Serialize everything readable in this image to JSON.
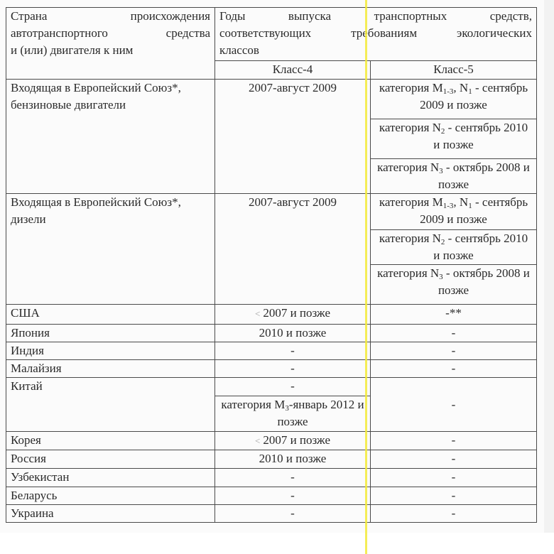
{
  "header": {
    "col1_line1_a": "Страна",
    "col1_line1_b": "происхождения",
    "col1_line2": "автотранспортного средства",
    "col1_line3": "и (или) двигателя к ним",
    "col2_line1": "Годы выпуска транспортных средств,",
    "col2_line2": "соответствующих требованиям экологических",
    "col2_line3": "классов",
    "class4": "Класс-4",
    "class5": "Класс-5"
  },
  "eu_petrol": {
    "country": "Входящая в Европейский Союз*, бензиновые двигатели",
    "class4": "2007-август 2009",
    "class5": [
      {
        "pre": "категория M",
        "sub1": "1-3",
        "mid": ", N",
        "sub2": "1",
        "post": " - сентябрь 2009 и позже"
      },
      {
        "pre": "категория N",
        "sub1": "2",
        "post": " - сентябрь 2010 и позже"
      },
      {
        "pre": "категория N",
        "sub1": "3",
        "post": " - октябрь 2008 и позже"
      }
    ]
  },
  "eu_diesel": {
    "country": "Входящая в Европейский Союз*, дизели",
    "class4": "2007-август 2009",
    "class5": [
      {
        "pre": "категория M",
        "sub1": "1-3",
        "mid": ", N",
        "sub2": "1",
        "post": " - сентябрь 2009 и позже"
      },
      {
        "pre": "категория N",
        "sub1": "2",
        "post": " - сентябрь 2010 и позже"
      },
      {
        "pre": "категория N",
        "sub1": "3",
        "post": " - октябрь 2008 и позже"
      }
    ]
  },
  "rows": [
    {
      "country": "США",
      "class4": "2007 и позже",
      "class5": "-**"
    },
    {
      "country": "Япония",
      "class4": "2010 и позже",
      "class5": "-"
    },
    {
      "country": "Индия",
      "class4": "-",
      "class5": "-"
    },
    {
      "country": "Малайзия",
      "class4": "-",
      "class5": "-"
    }
  ],
  "china": {
    "country": "Китай",
    "class4_a": "-",
    "class4_b": {
      "pre": "категория M",
      "sub1": "3",
      "post": "-январь 2012 и позже"
    },
    "class5": "-"
  },
  "rows2": [
    {
      "country": "Корея",
      "class4": "2007 и позже",
      "class5": "-"
    },
    {
      "country": "Россия",
      "class4": "2010 и позже",
      "class5": "-"
    },
    {
      "country": "Узбекистан",
      "class4": "-",
      "class5": "-"
    },
    {
      "country": "Беларусь",
      "class4": "-",
      "class5": "-"
    },
    {
      "country": "Украина",
      "class4": "-",
      "class5": "-"
    }
  ],
  "colors": {
    "marker": "#f2ea3a",
    "border": "#4a4a4a",
    "text": "#2a2a2a"
  }
}
